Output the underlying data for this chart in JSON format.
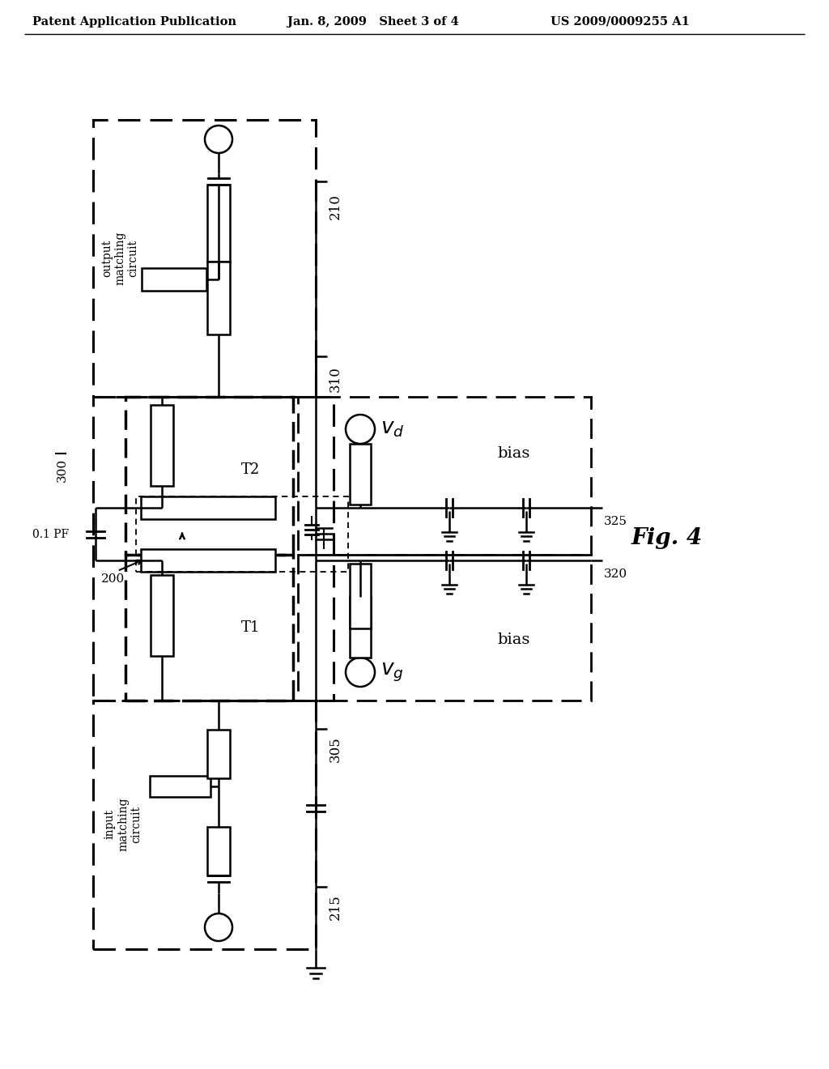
{
  "title_left": "Patent Application Publication",
  "title_mid": "Jan. 8, 2009   Sheet 3 of 4",
  "title_right": "US 2009/0009255 A1",
  "fig_label": "Fig. 4",
  "bg_color": "#ffffff",
  "line_color": "#000000"
}
